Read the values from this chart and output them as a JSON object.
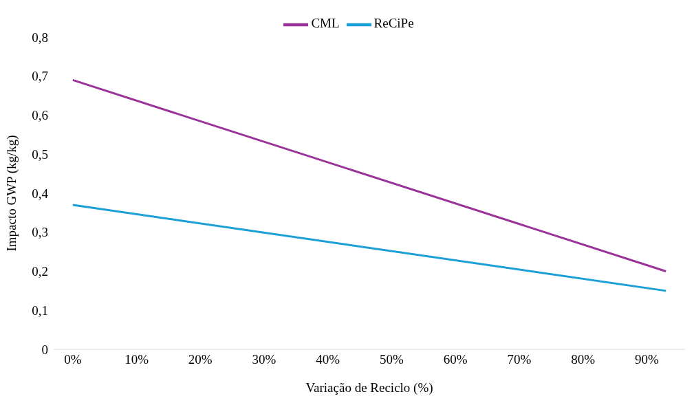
{
  "chart_data": {
    "type": "line",
    "xlabel": "Variação de Reciclo (%)",
    "ylabel": "Impacto GWP (kg/kg)",
    "xlim": [
      -3,
      96
    ],
    "xticks": [
      {
        "value": 0,
        "label": "0%"
      },
      {
        "value": 10,
        "label": "10%"
      },
      {
        "value": 20,
        "label": "20%"
      },
      {
        "value": 30,
        "label": "30%"
      },
      {
        "value": 40,
        "label": "40%"
      },
      {
        "value": 50,
        "label": "50%"
      },
      {
        "value": 60,
        "label": "60%"
      },
      {
        "value": 70,
        "label": "70%"
      },
      {
        "value": 80,
        "label": "80%"
      },
      {
        "value": 90,
        "label": "90%"
      }
    ],
    "ylim": [
      0,
      0.8
    ],
    "yticks": [
      0,
      {
        "value": 0.1,
        "label": "0,1"
      },
      {
        "value": 0.2,
        "label": "0,2"
      },
      {
        "value": 0.3,
        "label": "0,3"
      },
      {
        "value": 0.4,
        "label": "0,4"
      },
      {
        "value": 0.5,
        "label": "0,5"
      },
      {
        "value": 0.6,
        "label": "0,6"
      },
      {
        "value": 0.7,
        "label": "0,7"
      },
      {
        "value": 0.8,
        "label": "0,8"
      }
    ],
    "x": [
      0,
      93
    ],
    "series": [
      {
        "name": "CML",
        "color": "#993399",
        "values": [
          0.69,
          0.2
        ]
      },
      {
        "name": "ReCiPe",
        "color": "#1a9fd6",
        "values": [
          0.37,
          0.15
        ]
      }
    ],
    "grid": false,
    "legend": "top",
    "marker": "none",
    "line_style": "solid"
  }
}
